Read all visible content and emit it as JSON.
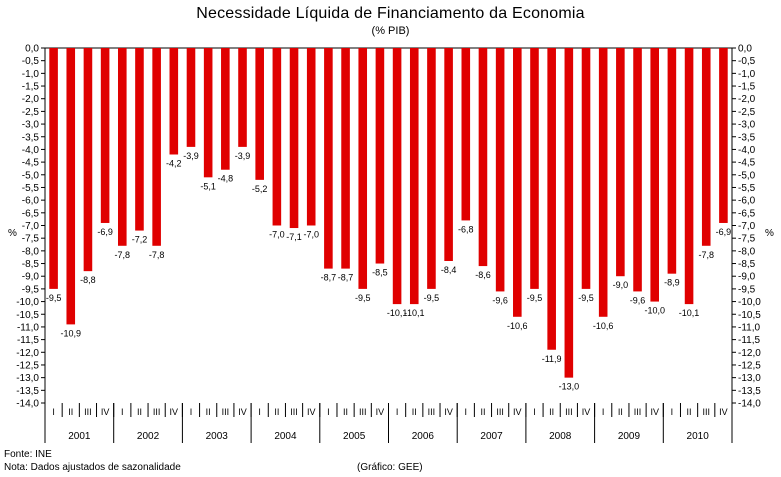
{
  "chart_data": {
    "type": "bar",
    "title": "Necessidade Líquida de Financiamento da Economia",
    "subtitle": "(% PIB)",
    "ylabel": "%",
    "ylim": [
      -14.0,
      0.0
    ],
    "ytick_step": 0.5,
    "ytick_labels": [
      "0,0",
      "-0,5",
      "-1,0",
      "-1,5",
      "-2,0",
      "-2,5",
      "-3,0",
      "-3,5",
      "-4,0",
      "-4,5",
      "-5,0",
      "-5,5",
      "-6,0",
      "-6,5",
      "-7,0",
      "-7,5",
      "-8,0",
      "-8,5",
      "-9,0",
      "-9,5",
      "-10,0",
      "-10,5",
      "-11,0",
      "-11,5",
      "-12,0",
      "-12,5",
      "-13,0",
      "-13,5",
      "-14,0"
    ],
    "bar_color": "#e00000",
    "quarters": [
      "I",
      "II",
      "III",
      "IV"
    ],
    "years": [
      "2001",
      "2002",
      "2003",
      "2004",
      "2005",
      "2006",
      "2007",
      "2008",
      "2009",
      "2010"
    ],
    "values": [
      -9.5,
      -10.9,
      -8.8,
      -6.9,
      -7.8,
      -7.2,
      -7.8,
      -4.2,
      -3.9,
      -5.1,
      -4.8,
      -3.9,
      -5.2,
      -7.0,
      -7.1,
      -7.0,
      -8.7,
      -8.7,
      -9.5,
      -8.5,
      -10.1,
      -10.1,
      -9.5,
      -8.4,
      -6.8,
      -8.6,
      -9.6,
      -10.6,
      -9.5,
      -11.9,
      -13.0,
      -9.5,
      -10.6,
      -9.0,
      -9.6,
      -10.0,
      -8.9,
      -10.1,
      -7.8,
      -6.9
    ],
    "labels": [
      "-9,5",
      "-10,9",
      "-8,8",
      "-6,9",
      "-7,8",
      "-7,2",
      "-7,8",
      "-4,2",
      "-3,9",
      "-5,1",
      "-4,8",
      "-3,9",
      "-5,2",
      "-7,0",
      "-7,1",
      "-7,0",
      "-8,7",
      "-8,7",
      "-9,5",
      "-8,5",
      "-10,1",
      "-10,1",
      "-9,5",
      "-8,4",
      "-6,8",
      "-8,6",
      "-9,6",
      "-10,6",
      "-9,5",
      "-11,9",
      "-13,0",
      "-9,5",
      "-10,6",
      "-9,0",
      "-9,6",
      "-10,0",
      "-8,9",
      "-10,1",
      "-7,8",
      "-6,9"
    ],
    "grid": false,
    "legend": "none"
  },
  "footer": {
    "source": "Fonte: INE",
    "note": "Nota: Dados ajustados de sazonalidade",
    "credit": "(Gráfico: GEE)"
  }
}
